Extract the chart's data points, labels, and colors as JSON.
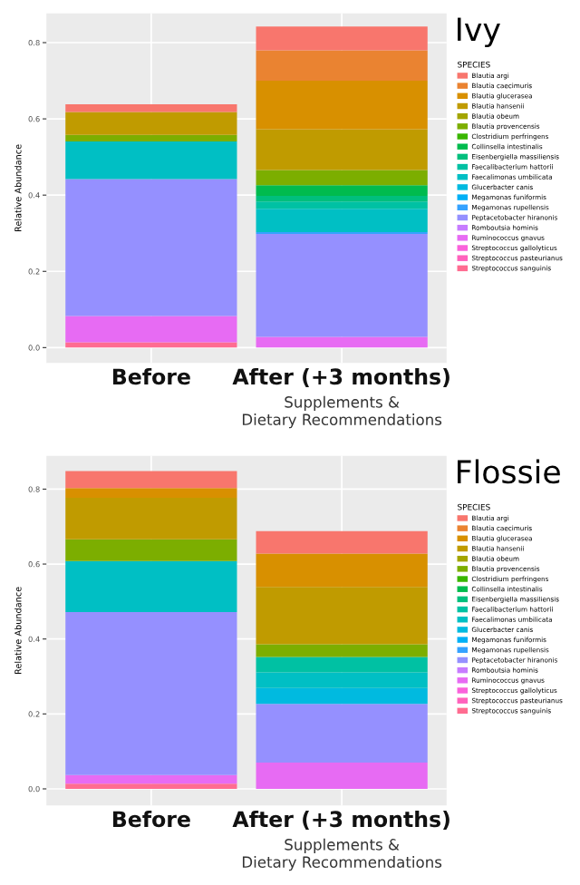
{
  "chart_data": [
    {
      "type": "bar",
      "stacked": true,
      "title": "Ivy",
      "legend_title": "SPECIES",
      "ylabel": "Relative Abundance",
      "legend": "right",
      "grid": true,
      "categories": [
        "Before",
        "After (+3 months)\nSupplements &\nDietary Recommendations"
      ],
      "ylim": [
        -0.04,
        0.877
      ],
      "yticks": [
        {
          "value": 0,
          "label": "0.0"
        },
        0.2,
        0.4,
        0.6,
        0.8
      ],
      "series": [
        {
          "name": "Streptococcus sanguinis",
          "color": "#FF6C91",
          "values": [
            0.014,
            0
          ]
        },
        {
          "name": "Streptococcus pasteurianus",
          "color": "#FF62BC",
          "values": [
            0,
            0
          ]
        },
        {
          "name": "Streptococcus gallolyticus",
          "color": "#FA62DB",
          "values": [
            0,
            0
          ]
        },
        {
          "name": "Ruminococcus gnavus",
          "color": "#E76BF3",
          "values": [
            0.069,
            0.028
          ]
        },
        {
          "name": "Romboutsia hominis",
          "color": "#C77CFF",
          "values": [
            0,
            0
          ]
        },
        {
          "name": "Peptacetobacter hiranonis",
          "color": "#9590FF",
          "values": [
            0.359,
            0.27
          ]
        },
        {
          "name": "Megamonas rupellensis",
          "color": "#35A2FF",
          "values": [
            0,
            0.005
          ]
        },
        {
          "name": "Megamonas funiformis",
          "color": "#00B0F6",
          "values": [
            0,
            0
          ]
        },
        {
          "name": "Glucerbacter canis",
          "color": "#00BAE0",
          "values": [
            0,
            0
          ]
        },
        {
          "name": "Faecalimonas umbilicata",
          "color": "#00BFC4",
          "values": [
            0.099,
            0.061
          ]
        },
        {
          "name": "Faecalibacterium hattorii",
          "color": "#00C1A3",
          "values": [
            0,
            0.019
          ]
        },
        {
          "name": "Eisenbergiella massiliensis",
          "color": "#00BF7D",
          "values": [
            0,
            0.015
          ]
        },
        {
          "name": "Collinsella intestinalis",
          "color": "#00BB4E",
          "values": [
            0,
            0.028
          ]
        },
        {
          "name": "Clostridium perfringens",
          "color": "#39B600",
          "values": [
            0,
            0
          ]
        },
        {
          "name": "Blautia provencensis",
          "color": "#7CAE00",
          "values": [
            0.017,
            0.04
          ]
        },
        {
          "name": "Blautia obeum",
          "color": "#A3A500",
          "values": [
            0,
            0
          ]
        },
        {
          "name": "Blautia hansenii",
          "color": "#C09B00",
          "values": [
            0.06,
            0.107
          ]
        },
        {
          "name": "Blautia glucerasea",
          "color": "#D89000",
          "values": [
            0,
            0.127
          ]
        },
        {
          "name": "Blautia caecimuris",
          "color": "#EA8331",
          "values": [
            0,
            0.08
          ]
        },
        {
          "name": "Blautia argi",
          "color": "#F8766D",
          "values": [
            0.02,
            0.062
          ]
        }
      ]
    },
    {
      "type": "bar",
      "stacked": true,
      "title": "Flossie",
      "legend_title": "SPECIES",
      "ylabel": "Relative Abundance",
      "legend": "right",
      "grid": true,
      "categories": [
        "Before",
        "After (+3 months)\nSupplements &\nDietary Recommendations"
      ],
      "ylim": [
        -0.044,
        0.889
      ],
      "yticks": [
        {
          "value": 0,
          "label": "0.0"
        },
        0.2,
        0.4,
        0.6,
        0.8
      ],
      "series": [
        {
          "name": "Streptococcus sanguinis",
          "color": "#FF6C91",
          "values": [
            0.014,
            0
          ]
        },
        {
          "name": "Streptococcus pasteurianus",
          "color": "#FF62BC",
          "values": [
            0,
            0
          ]
        },
        {
          "name": "Streptococcus gallolyticus",
          "color": "#FA62DB",
          "values": [
            0,
            0
          ]
        },
        {
          "name": "Ruminococcus gnavus",
          "color": "#E76BF3",
          "values": [
            0.023,
            0.07
          ]
        },
        {
          "name": "Romboutsia hominis",
          "color": "#C77CFF",
          "values": [
            0,
            0
          ]
        },
        {
          "name": "Peptacetobacter hiranonis",
          "color": "#9590FF",
          "values": [
            0.435,
            0.157
          ]
        },
        {
          "name": "Megamonas rupellensis",
          "color": "#35A2FF",
          "values": [
            0,
            0
          ]
        },
        {
          "name": "Megamonas funiformis",
          "color": "#00B0F6",
          "values": [
            0,
            0
          ]
        },
        {
          "name": "Glucerbacter canis",
          "color": "#00BAE0",
          "values": [
            0,
            0.042
          ]
        },
        {
          "name": "Faecalimonas umbilicata",
          "color": "#00BFC4",
          "values": [
            0.136,
            0.042
          ]
        },
        {
          "name": "Faecalibacterium hattorii",
          "color": "#00C1A3",
          "values": [
            0,
            0.041
          ]
        },
        {
          "name": "Eisenbergiella massiliensis",
          "color": "#00BF7D",
          "values": [
            0,
            0
          ]
        },
        {
          "name": "Collinsella intestinalis",
          "color": "#00BB4E",
          "values": [
            0,
            0
          ]
        },
        {
          "name": "Clostridium perfringens",
          "color": "#39B600",
          "values": [
            0,
            0
          ]
        },
        {
          "name": "Blautia provencensis",
          "color": "#7CAE00",
          "values": [
            0.058,
            0.034
          ]
        },
        {
          "name": "Blautia obeum",
          "color": "#A3A500",
          "values": [
            0,
            0
          ]
        },
        {
          "name": "Blautia hansenii",
          "color": "#C09B00",
          "values": [
            0.111,
            0.153
          ]
        },
        {
          "name": "Blautia glucerasea",
          "color": "#D89000",
          "values": [
            0.026,
            0.089
          ]
        },
        {
          "name": "Blautia caecimuris",
          "color": "#EA8331",
          "values": [
            0,
            0
          ]
        },
        {
          "name": "Blautia argi",
          "color": "#F8766D",
          "values": [
            0.045,
            0.06
          ]
        }
      ]
    }
  ]
}
